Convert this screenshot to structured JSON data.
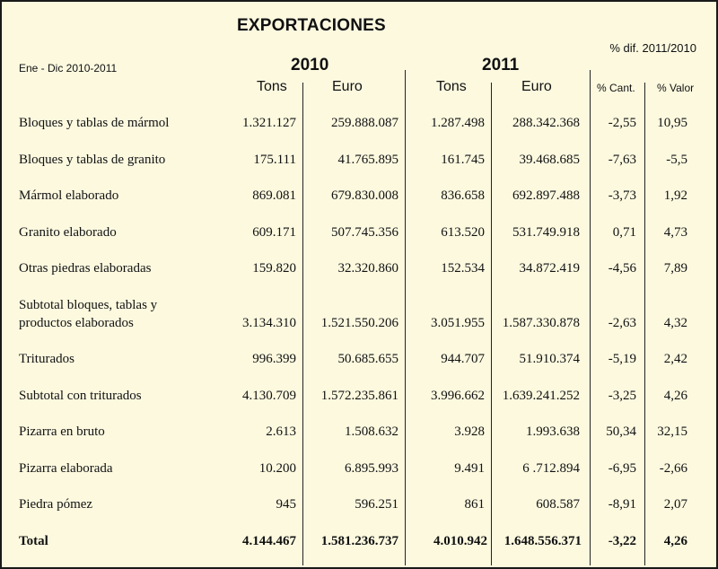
{
  "header": {
    "title": "EXPORTACIONES",
    "period": "Ene - Dic  2010-2011",
    "pct_dif": "% dif. 2011/2010",
    "year_2010": "2010",
    "year_2011": "2011"
  },
  "columns": {
    "tons_2010": "Tons",
    "euro_2010": "Euro",
    "tons_2011": "Tons",
    "euro_2011": "Euro",
    "pct_cant": "% Cant.",
    "pct_valor": "% Valor"
  },
  "rows": [
    {
      "label": "Bloques y tablas de mármol",
      "tons2010": "1.321.127",
      "euro2010": "259.888.087",
      "tons2011": "1.287.498",
      "euro2011": "288.342.368",
      "cant": "-2,55",
      "valor": "10,95"
    },
    {
      "label": "Bloques y tablas de granito",
      "tons2010": "175.111",
      "euro2010": "41.765.895",
      "tons2011": "161.745",
      "euro2011": "39.468.685",
      "cant": "-7,63",
      "valor": "-5,5"
    },
    {
      "label": "Mármol elaborado",
      "tons2010": "869.081",
      "euro2010": "679.830.008",
      "tons2011": "836.658",
      "euro2011": "692.897.488",
      "cant": "-3,73",
      "valor": "1,92"
    },
    {
      "label": "Granito elaborado",
      "tons2010": "609.171",
      "euro2010": "507.745.356",
      "tons2011": "613.520",
      "euro2011": "531.749.918",
      "cant": "0,71",
      "valor": "4,73"
    },
    {
      "label": "Otras piedras elaboradas",
      "tons2010": "159.820",
      "euro2010": "32.320.860",
      "tons2011": "152.534",
      "euro2011": "34.872.419",
      "cant": "-4,56",
      "valor": "7,89"
    },
    {
      "label_line1": "Subtotal bloques, tablas y",
      "label_line2": "productos elaborados",
      "tons2010": "3.134.310",
      "euro2010": "1.521.550.206",
      "tons2011": "3.051.955",
      "euro2011": "1.587.330.878",
      "cant": "-2,63",
      "valor": "4,32"
    },
    {
      "label": "Triturados",
      "tons2010": "996.399",
      "euro2010": "50.685.655",
      "tons2011": "944.707",
      "euro2011": "51.910.374",
      "cant": "-5,19",
      "valor": "2,42"
    },
    {
      "label": "Subtotal con triturados",
      "tons2010": "4.130.709",
      "euro2010": "1.572.235.861",
      "tons2011": "3.996.662",
      "euro2011": "1.639.241.252",
      "cant": "-3,25",
      "valor": "4,26"
    },
    {
      "label": "Pizarra en bruto",
      "tons2010": "2.613",
      "euro2010": "1.508.632",
      "tons2011": "3.928",
      "euro2011": "1.993.638",
      "cant": "50,34",
      "valor": "32,15"
    },
    {
      "label": "Pizarra elaborada",
      "tons2010": "10.200",
      "euro2010": "6.895.993",
      "tons2011": "9.491",
      "euro2011": "6 .712.894",
      "cant": "-6,95",
      "valor": "-2,66"
    },
    {
      "label": "Piedra pómez",
      "tons2010": "945",
      "euro2010": "596.251",
      "tons2011": "861",
      "euro2011": "608.587",
      "cant": "-8,91",
      "valor": "2,07"
    }
  ],
  "total": {
    "label": "Total",
    "tons2010": "4.144.467",
    "euro2010": "1.581.236.737",
    "tons2011": "4.010.942",
    "euro2011": "1.648.556.371",
    "cant": "-3,22",
    "valor": "4,26"
  }
}
